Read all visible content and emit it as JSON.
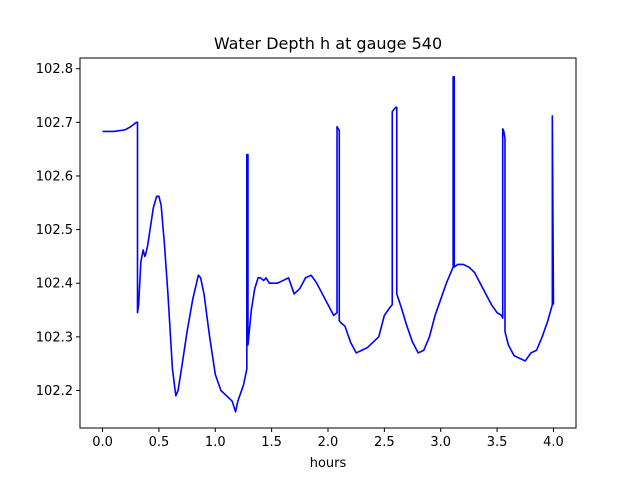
{
  "chart_data": {
    "type": "line",
    "title": "Water Depth h at gauge 540",
    "xlabel": "hours",
    "ylabel": "",
    "xlim": [
      -0.2,
      4.2
    ],
    "ylim": [
      102.13,
      102.82
    ],
    "xticks": [
      0.0,
      0.5,
      1.0,
      1.5,
      2.0,
      2.5,
      3.0,
      3.5,
      4.0
    ],
    "xtick_labels": [
      "0.0",
      "0.5",
      "1.0",
      "1.5",
      "2.0",
      "2.5",
      "3.0",
      "3.5",
      "4.0"
    ],
    "yticks": [
      102.2,
      102.3,
      102.4,
      102.5,
      102.6,
      102.7,
      102.8
    ],
    "ytick_labels": [
      "102.2",
      "102.3",
      "102.4",
      "102.5",
      "102.6",
      "102.7",
      "102.8"
    ],
    "grid": false,
    "legend": "none",
    "series": [
      {
        "color": "#0000ff",
        "x": [
          0.0,
          0.1,
          0.2,
          0.25,
          0.3,
          0.31,
          0.31,
          0.32,
          0.34,
          0.36,
          0.375,
          0.38,
          0.4,
          0.45,
          0.48,
          0.5,
          0.52,
          0.55,
          0.58,
          0.62,
          0.65,
          0.67,
          0.7,
          0.75,
          0.8,
          0.85,
          0.87,
          0.9,
          0.95,
          1.0,
          1.05,
          1.1,
          1.15,
          1.18,
          1.2,
          1.25,
          1.28,
          1.28,
          1.29,
          1.29,
          1.32,
          1.35,
          1.38,
          1.4,
          1.43,
          1.45,
          1.48,
          1.5,
          1.55,
          1.6,
          1.65,
          1.7,
          1.75,
          1.8,
          1.85,
          1.9,
          1.95,
          2.0,
          2.05,
          2.08,
          2.08,
          2.1,
          2.1,
          2.12,
          2.15,
          2.2,
          2.25,
          2.3,
          2.35,
          2.4,
          2.45,
          2.5,
          2.55,
          2.57,
          2.57,
          2.6,
          2.61,
          2.61,
          2.65,
          2.7,
          2.75,
          2.8,
          2.85,
          2.9,
          2.95,
          3.0,
          3.05,
          3.1,
          3.11,
          3.11,
          3.12,
          3.12,
          3.15,
          3.2,
          3.25,
          3.3,
          3.35,
          3.4,
          3.45,
          3.5,
          3.54,
          3.55,
          3.55,
          3.56,
          3.57,
          3.57,
          3.6,
          3.65,
          3.7,
          3.75,
          3.8,
          3.85,
          3.9,
          3.95,
          3.99,
          3.99,
          4.0
        ],
        "y": [
          102.683,
          102.683,
          102.686,
          102.692,
          102.7,
          102.7,
          102.345,
          102.36,
          102.44,
          102.462,
          102.45,
          102.452,
          102.47,
          102.54,
          102.562,
          102.562,
          102.545,
          102.47,
          102.38,
          102.24,
          102.19,
          102.2,
          102.24,
          102.31,
          102.37,
          102.415,
          102.41,
          102.38,
          102.3,
          102.23,
          102.2,
          102.19,
          102.18,
          102.16,
          102.18,
          102.21,
          102.24,
          102.64,
          102.64,
          102.285,
          102.35,
          102.39,
          102.41,
          102.41,
          102.405,
          102.41,
          102.4,
          102.4,
          102.4,
          102.405,
          102.41,
          102.38,
          102.39,
          102.41,
          102.415,
          102.4,
          102.38,
          102.36,
          102.34,
          102.345,
          102.692,
          102.685,
          102.33,
          102.325,
          102.32,
          102.29,
          102.27,
          102.275,
          102.28,
          102.29,
          102.3,
          102.34,
          102.355,
          102.36,
          102.72,
          102.728,
          102.728,
          102.38,
          102.355,
          102.32,
          102.29,
          102.27,
          102.275,
          102.3,
          102.34,
          102.37,
          102.4,
          102.425,
          102.43,
          102.785,
          102.785,
          102.43,
          102.435,
          102.435,
          102.43,
          102.42,
          102.4,
          102.38,
          102.36,
          102.345,
          102.34,
          102.335,
          102.688,
          102.683,
          102.67,
          102.31,
          102.285,
          102.265,
          102.26,
          102.255,
          102.27,
          102.275,
          102.3,
          102.33,
          102.36,
          102.712,
          102.36
        ]
      }
    ]
  }
}
